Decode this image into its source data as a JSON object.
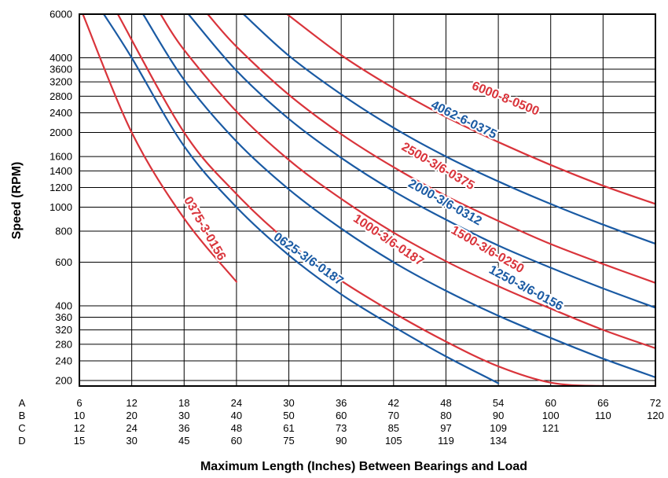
{
  "chart_data": {
    "type": "line",
    "title": "",
    "xlabel": "Maximum Length (Inches) Between Bearings and Load",
    "ylabel": "Speed (RPM)",
    "y_scale": "log",
    "ylim": [
      190,
      6000
    ],
    "xlim": [
      6,
      72
    ],
    "grid": true,
    "y_ticks": [
      6000,
      4000,
      3600,
      3200,
      2800,
      2400,
      2000,
      1600,
      1400,
      1200,
      1000,
      800,
      600,
      400,
      360,
      320,
      280,
      240,
      200
    ],
    "x_scales": [
      {
        "name": "A",
        "ticks": [
          "6",
          "12",
          "18",
          "24",
          "30",
          "36",
          "42",
          "48",
          "54",
          "60",
          "66",
          "72"
        ]
      },
      {
        "name": "B",
        "ticks": [
          "10",
          "20",
          "30",
          "40",
          "50",
          "60",
          "70",
          "80",
          "90",
          "100",
          "110",
          "120"
        ]
      },
      {
        "name": "C",
        "ticks": [
          "12",
          "24",
          "36",
          "48",
          "61",
          "73",
          "85",
          "97",
          "109",
          "121",
          "",
          ""
        ]
      },
      {
        "name": "D",
        "ticks": [
          "15",
          "30",
          "45",
          "60",
          "75",
          "90",
          "105",
          "119",
          "134",
          "",
          "",
          ""
        ]
      }
    ],
    "series": [
      {
        "name": "0375-3-0156",
        "color": "#d9343b",
        "x": [
          6.4,
          12,
          18,
          24
        ],
        "y": [
          6000,
          2000,
          900,
          500
        ]
      },
      {
        "name": "0625-3/6-0187",
        "color": "#1a5aa3",
        "x": [
          8.8,
          12,
          18,
          24,
          30,
          36,
          42,
          48,
          54
        ],
        "y": [
          6000,
          4000,
          1760,
          1000,
          640,
          445,
          330,
          250,
          195
        ]
      },
      {
        "name": "1000-3/6-0187",
        "color": "#d9343b",
        "x": [
          10.4,
          18,
          24,
          30,
          36,
          42,
          48,
          54,
          60,
          66,
          72
        ],
        "y": [
          6000,
          2000,
          1130,
          720,
          505,
          375,
          287,
          228,
          196,
          190,
          190
        ]
      },
      {
        "name": "1250-3/6-0156",
        "color": "#1a5aa3",
        "x": [
          13.3,
          18,
          24,
          30,
          36,
          42,
          48,
          54,
          60,
          66,
          72
        ],
        "y": [
          6000,
          3260,
          1840,
          1180,
          820,
          600,
          460,
          365,
          297,
          245,
          206
        ]
      },
      {
        "name": "1500-3/6-0250",
        "color": "#d9343b",
        "x": [
          15.3,
          18,
          24,
          30,
          36,
          42,
          48,
          54,
          60,
          66,
          72
        ],
        "y": [
          6000,
          4300,
          2430,
          1550,
          1080,
          790,
          605,
          480,
          390,
          320,
          270
        ]
      },
      {
        "name": "2000-3/6-0312",
        "color": "#1a5aa3",
        "x": [
          18.5,
          24,
          30,
          36,
          42,
          48,
          54,
          60,
          66,
          72
        ],
        "y": [
          6000,
          3550,
          2270,
          1580,
          1160,
          890,
          700,
          570,
          470,
          393
        ]
      },
      {
        "name": "2500-3/6-0375",
        "color": "#d9343b",
        "x": [
          20.7,
          24,
          30,
          36,
          42,
          48,
          54,
          60,
          66,
          72
        ],
        "y": [
          6000,
          4440,
          2840,
          1970,
          1450,
          1110,
          880,
          710,
          590,
          495
        ]
      },
      {
        "name": "4062-6-0375",
        "color": "#1a5aa3",
        "x": [
          24.8,
          30,
          36,
          42,
          48,
          54,
          60,
          66,
          72
        ],
        "y": [
          6000,
          4080,
          2850,
          2090,
          1600,
          1270,
          1030,
          850,
          712
        ]
      },
      {
        "name": "6000-8-0500",
        "color": "#d9343b",
        "x": [
          29.8,
          36,
          42,
          48,
          54,
          60,
          66,
          72
        ],
        "y": [
          6000,
          4100,
          3020,
          2310,
          1830,
          1480,
          1220,
          1030
        ]
      }
    ]
  }
}
